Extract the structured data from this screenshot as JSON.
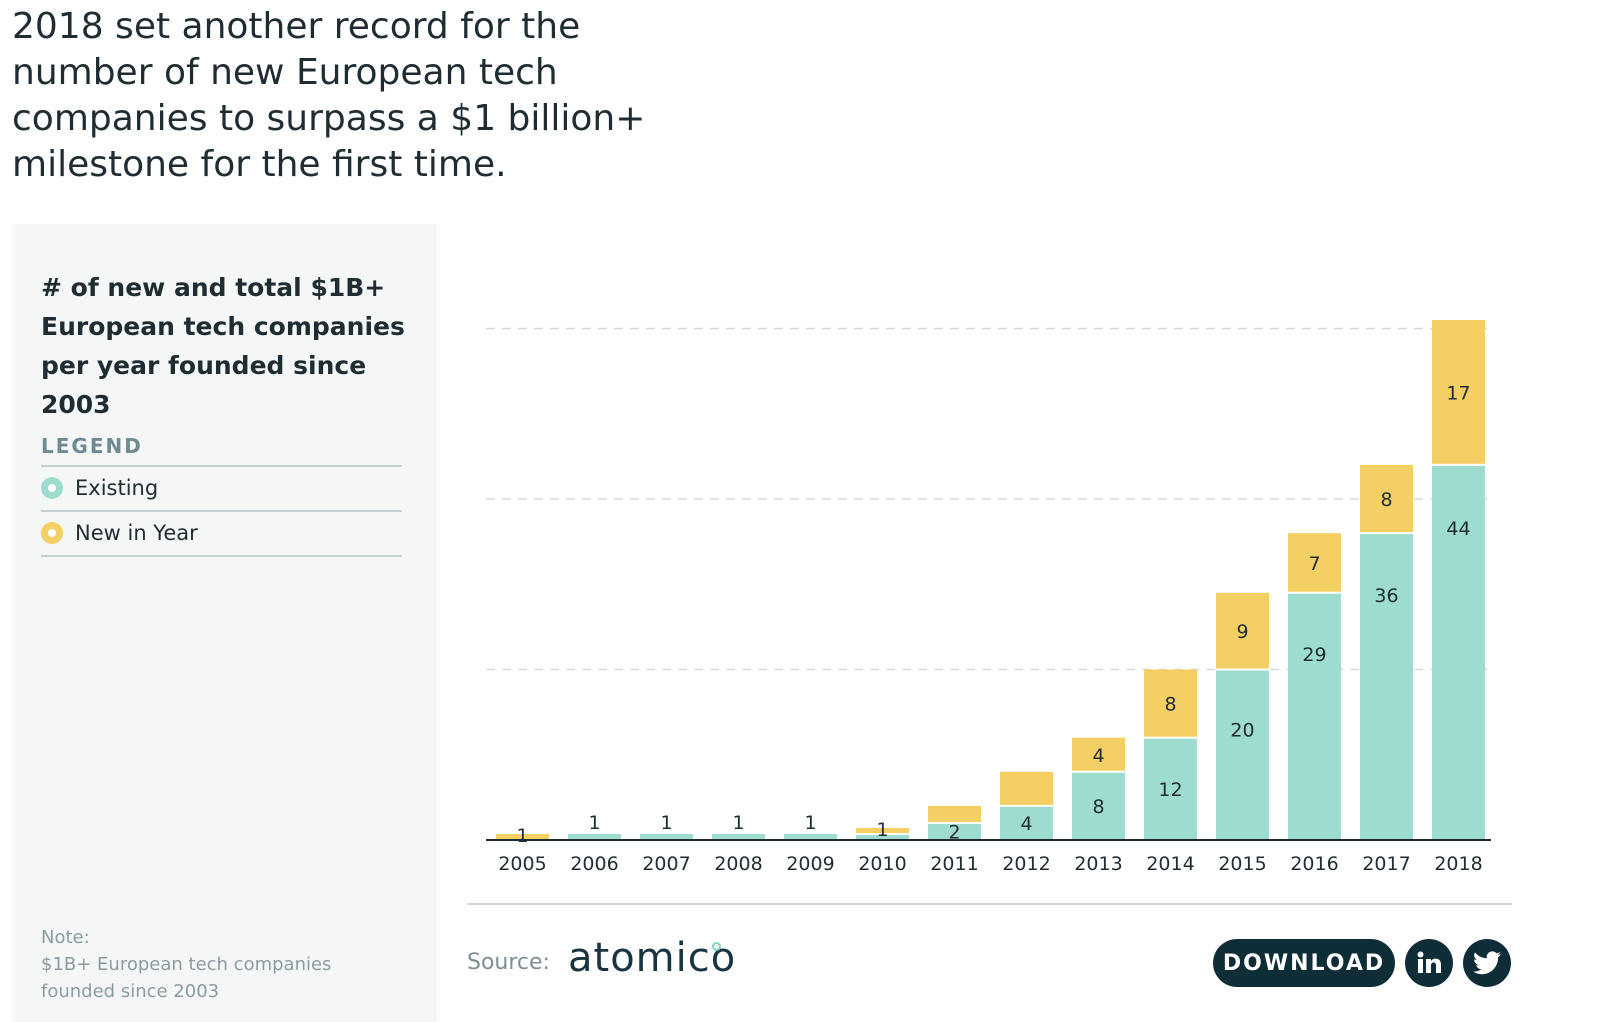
{
  "headline": "2018 set another record for the number of new European tech companies to surpass a $1 billion+ milestone for the first time.",
  "panel": {
    "title": "# of new and total $1B+ European tech companies per year founded since 2003",
    "legend_heading": "LEGEND",
    "legend": [
      {
        "label": "Existing",
        "color": "#9ddccf"
      },
      {
        "label": "New in Year",
        "color": "#f4d064"
      }
    ],
    "note_label": "Note:",
    "note_text": "$1B+ European tech companies founded since 2003"
  },
  "footer": {
    "source_label": "Source:",
    "logo_text": "atomico",
    "download_label": "DOWNLOAD",
    "linkedin_icon": "linkedin-icon",
    "twitter_icon": "twitter-icon"
  },
  "colors": {
    "existing": "#9ddccf",
    "new": "#f4d064",
    "dark": "#0f2d37"
  },
  "chart_data": {
    "type": "bar",
    "stacked": true,
    "title": "# of new and total $1B+ European tech companies per year founded since 2003",
    "categories": [
      "2005",
      "2006",
      "2007",
      "2008",
      "2009",
      "2010",
      "2011",
      "2012",
      "2013",
      "2014",
      "2015",
      "2016",
      "2017",
      "2018"
    ],
    "series": [
      {
        "name": "Existing",
        "values": [
          0,
          1,
          1,
          1,
          1,
          1,
          2,
          4,
          8,
          12,
          20,
          29,
          36,
          44
        ],
        "labels": [
          "",
          "1",
          "1",
          "1",
          "1",
          "",
          "2",
          "4",
          "8",
          "12",
          "20",
          "29",
          "36",
          "44"
        ]
      },
      {
        "name": "New in Year",
        "values": [
          1,
          0,
          0,
          0,
          0,
          1,
          2,
          4,
          4,
          8,
          9,
          7,
          8,
          17
        ],
        "labels": [
          "1",
          "",
          "",
          "",
          "",
          "1",
          "",
          "",
          "4",
          "8",
          "9",
          "7",
          "8",
          "17"
        ]
      }
    ],
    "ylim": [
      0,
      61
    ],
    "gridlines": [
      20,
      40,
      60
    ],
    "xlabel": "",
    "ylabel": "",
    "legend": "left-panel"
  }
}
